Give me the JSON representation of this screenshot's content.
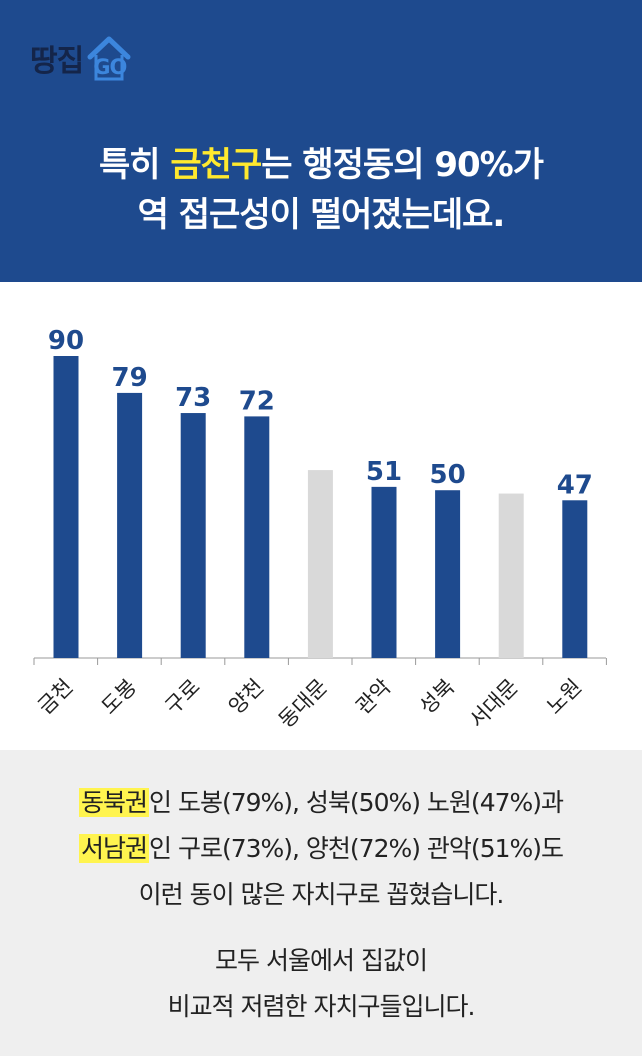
{
  "logo": {
    "text": "땅집",
    "badge": "GO"
  },
  "headline": {
    "line1_pre": "특히 ",
    "line1_highlight": "금천구",
    "line1_post": "는 행정동의 90%가",
    "line2": "역 접근성이 떨어졌는데요."
  },
  "colors": {
    "header_bg": "#1e4a8e",
    "bar_primary": "#1e4a8e",
    "bar_muted": "#d9d9d9",
    "highlight": "#ffe92e",
    "marker": "#fff44f"
  },
  "chart_data": {
    "type": "bar",
    "title": "",
    "xlabel": "",
    "ylabel": "",
    "ylim": [
      0,
      90
    ],
    "categories": [
      "금천",
      "도봉",
      "구로",
      "양천",
      "동대문",
      "관악",
      "성북",
      "서대문",
      "노원"
    ],
    "values": [
      90,
      79,
      73,
      72,
      56,
      51,
      50,
      49,
      47
    ],
    "value_labels": [
      "90",
      "79",
      "73",
      "72",
      "",
      "51",
      "50",
      "",
      "47"
    ],
    "muted": [
      false,
      false,
      false,
      false,
      true,
      false,
      false,
      true,
      false
    ],
    "grid": false,
    "legend": "none"
  },
  "footer": {
    "line1_mark": "동북권",
    "line1_rest": "인 도봉(79%), 성북(50%) 노원(47%)과",
    "line2_mark": "서남권",
    "line2_rest": "인 구로(73%), 양천(72%) 관악(51%)도",
    "line3": "이런 동이 많은 자치구로 꼽혔습니다.",
    "line4": "모두 서울에서 집값이",
    "line5": "비교적 저렴한 자치구들입니다."
  }
}
